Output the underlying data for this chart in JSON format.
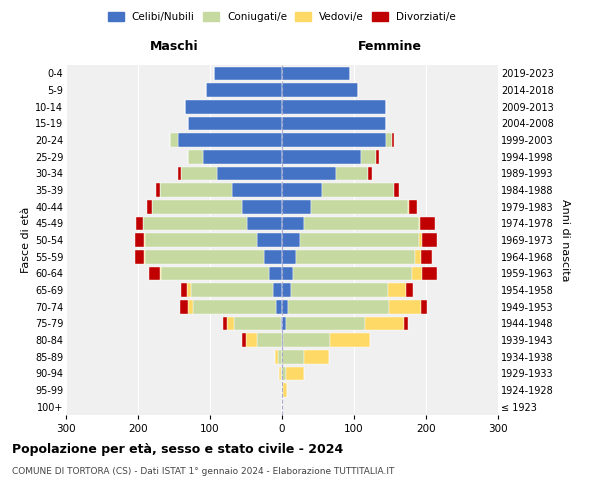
{
  "age_groups": [
    "100+",
    "95-99",
    "90-94",
    "85-89",
    "80-84",
    "75-79",
    "70-74",
    "65-69",
    "60-64",
    "55-59",
    "50-54",
    "45-49",
    "40-44",
    "35-39",
    "30-34",
    "25-29",
    "20-24",
    "15-19",
    "10-14",
    "5-9",
    "0-4"
  ],
  "birth_years": [
    "≤ 1923",
    "1924-1928",
    "1929-1933",
    "1934-1938",
    "1939-1943",
    "1944-1948",
    "1949-1953",
    "1954-1958",
    "1959-1963",
    "1964-1968",
    "1969-1973",
    "1974-1978",
    "1979-1983",
    "1984-1988",
    "1989-1993",
    "1994-1998",
    "1999-2003",
    "2004-2008",
    "2009-2013",
    "2014-2018",
    "2019-2023"
  ],
  "colors": {
    "celibe": "#4472C4",
    "coniugato": "#C5D9A0",
    "vedovo": "#FFD966",
    "divorziato": "#C00000"
  },
  "maschi": {
    "celibe": [
      0,
      0,
      0,
      0,
      0,
      2,
      8,
      12,
      18,
      25,
      35,
      48,
      55,
      70,
      90,
      110,
      145,
      130,
      135,
      105,
      95
    ],
    "coniugato": [
      0,
      0,
      2,
      5,
      35,
      65,
      115,
      115,
      150,
      165,
      155,
      145,
      125,
      100,
      50,
      20,
      10,
      0,
      0,
      0,
      0
    ],
    "vedovo": [
      0,
      0,
      2,
      5,
      15,
      10,
      8,
      5,
      2,
      2,
      2,
      0,
      0,
      0,
      0,
      0,
      0,
      0,
      0,
      0,
      0
    ],
    "divorziato": [
      0,
      0,
      0,
      0,
      5,
      5,
      10,
      8,
      15,
      12,
      12,
      10,
      8,
      5,
      5,
      0,
      0,
      0,
      0,
      0,
      0
    ]
  },
  "femmine": {
    "nubile": [
      0,
      0,
      0,
      0,
      2,
      5,
      8,
      12,
      15,
      20,
      25,
      30,
      40,
      55,
      75,
      110,
      145,
      145,
      145,
      105,
      95
    ],
    "coniugata": [
      0,
      2,
      5,
      30,
      65,
      110,
      140,
      135,
      165,
      165,
      165,
      160,
      135,
      100,
      45,
      20,
      8,
      0,
      0,
      0,
      0
    ],
    "vedova": [
      0,
      5,
      25,
      35,
      55,
      55,
      45,
      25,
      15,
      8,
      5,
      2,
      2,
      0,
      0,
      0,
      0,
      0,
      0,
      0,
      0
    ],
    "divorziata": [
      0,
      0,
      0,
      0,
      0,
      5,
      8,
      10,
      20,
      15,
      20,
      20,
      10,
      8,
      5,
      5,
      2,
      0,
      0,
      0,
      0
    ]
  },
  "title": "Popolazione per età, sesso e stato civile - 2024",
  "subtitle": "COMUNE DI TORTORA (CS) - Dati ISTAT 1° gennaio 2024 - Elaborazione TUTTITALIA.IT",
  "xlabel_maschi": "Maschi",
  "xlabel_femmine": "Femmine",
  "ylabel": "Fasce di età",
  "ylabel_right": "Anni di nascita",
  "xlim": 300,
  "legend_labels": [
    "Celibi/Nubili",
    "Coniugati/e",
    "Vedovi/e",
    "Divorziati/e"
  ],
  "background_color": "#f0f0f0"
}
